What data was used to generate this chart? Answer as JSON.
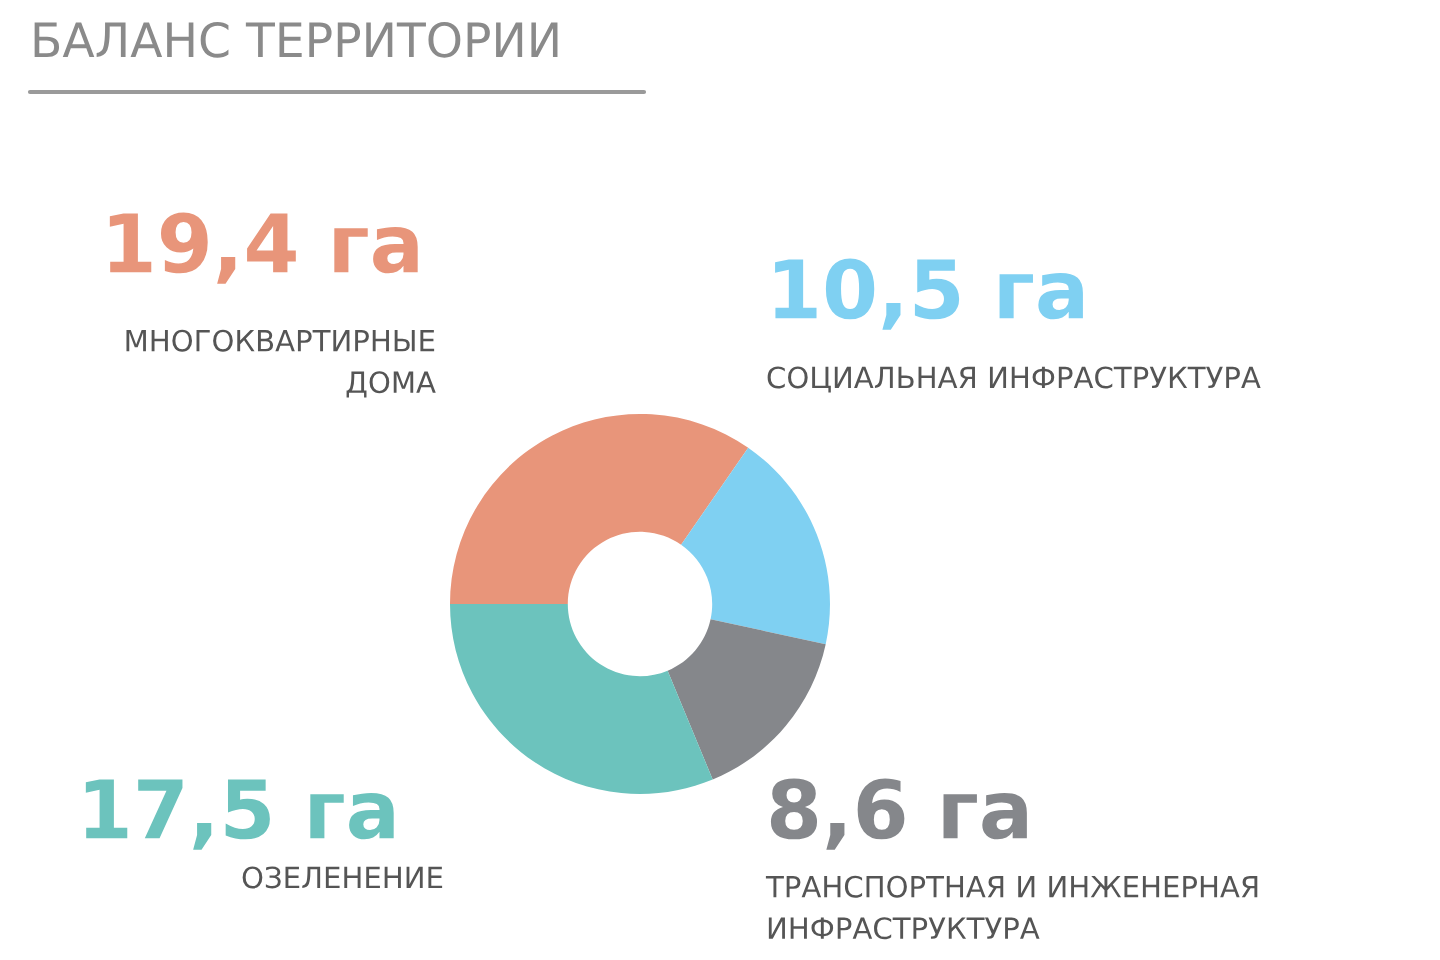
{
  "chart_data": {
    "type": "donut",
    "title": "БАЛАНС ТЕРРИТОРИИ",
    "categories": [
      "МНОГОКВАРТИРНЫЕ\nДОМА",
      "СОЦИАЛЬНАЯ ИНФРАСТРУКТУРА",
      "ТРАНСПОРТНАЯ И ИНЖЕНЕРНАЯ\nИНФРАСТРУКТУРА",
      "ОЗЕЛЕНЕНИЕ"
    ],
    "values": [
      19.4,
      10.5,
      8.6,
      17.5
    ],
    "value_labels": [
      "19,4 га",
      "10,5 га",
      "8,6 га",
      "17,5 га"
    ],
    "colors": [
      "#e8957a",
      "#7fd0f2",
      "#85878b",
      "#6cc3bd"
    ]
  }
}
